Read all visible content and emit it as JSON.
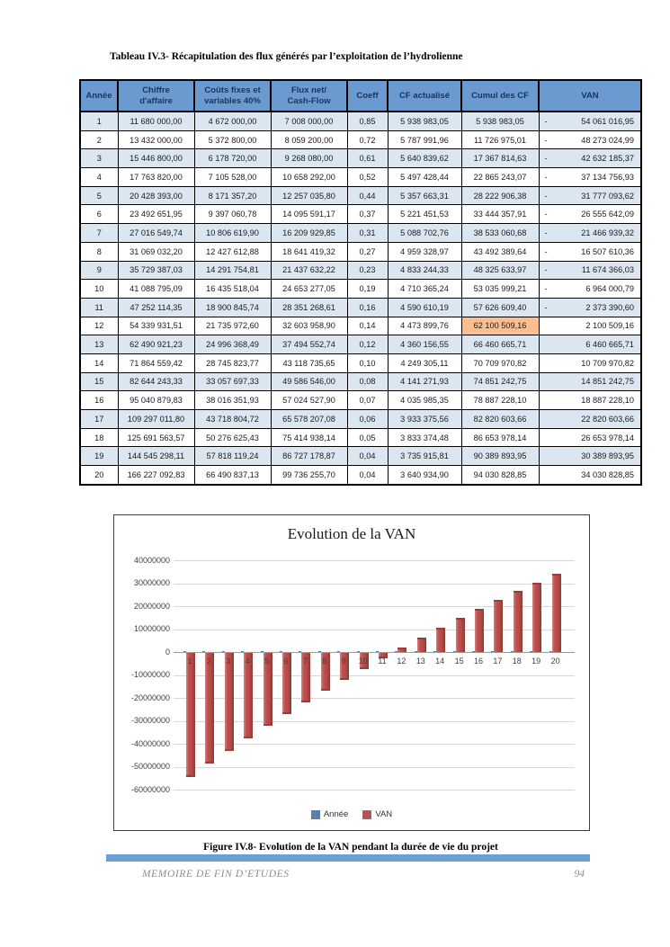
{
  "page": {
    "table_title": "Tableau IV.3- Récapitulation des flux générés par l’exploitation de l’hydrolienne",
    "figure_caption": "Figure IV.8- Evolution de la VAN pendant la durée de vie du projet",
    "footer_left": "MEMOIRE DE FIN D’ETUDES",
    "footer_page": "94",
    "accent_bar_color": "#6aa0d6"
  },
  "table": {
    "header_bg": "#6b9ad1",
    "shade_row_bg": "#dce6f1",
    "highlight_bg": "#fabf8f",
    "headers": [
      "Année",
      "Chiffre\nd'affaire",
      "Coûts fixes et\nvariables 40%",
      "Flux net/\nCash-Flow",
      "Coeff",
      "CF actualisé",
      "Cumul des CF",
      "VAN"
    ],
    "highlight_cumul_rows": [
      11,
      12
    ],
    "rows": [
      [
        "1",
        "11 680 000,00",
        "4 672 000,00",
        "7 008 000,00",
        "0,85",
        "5 938 983,05",
        "5 938 983,05",
        "-54 061 016,95"
      ],
      [
        "2",
        "13 432 000,00",
        "5 372 800,00",
        "8 059 200,00",
        "0,72",
        "5 787 991,96",
        "11 726 975,01",
        "-48 273 024,99"
      ],
      [
        "3",
        "15 446 800,00",
        "6 178 720,00",
        "9 268 080,00",
        "0,61",
        "5 640 839,62",
        "17 367 814,63",
        "-42 632 185,37"
      ],
      [
        "4",
        "17 763 820,00",
        "7 105 528,00",
        "10 658 292,00",
        "0,52",
        "5 497 428,44",
        "22 865 243,07",
        "-37 134 756,93"
      ],
      [
        "5",
        "20 428 393,00",
        "8 171 357,20",
        "12 257 035,80",
        "0,44",
        "5 357 663,31",
        "28 222 906,38",
        "-31 777 093,62"
      ],
      [
        "6",
        "23 492 651,95",
        "9 397 060,78",
        "14 095 591,17",
        "0,37",
        "5 221 451,53",
        "33 444 357,91",
        "-26 555 642,09"
      ],
      [
        "7",
        "27 016 549,74",
        "10 806 619,90",
        "16 209 929,85",
        "0,31",
        "5 088 702,76",
        "38 533 060,68",
        "-21 466 939,32"
      ],
      [
        "8",
        "31 069 032,20",
        "12 427 612,88",
        "18 641 419,32",
        "0,27",
        "4 959 328,97",
        "43 492 389,64",
        "-16 507 610,36"
      ],
      [
        "9",
        "35 729 387,03",
        "14 291 754,81",
        "21 437 632,22",
        "0,23",
        "4 833 244,33",
        "48 325 633,97",
        "-11 674 366,03"
      ],
      [
        "10",
        "41 088 795,09",
        "16 435 518,04",
        "24 653 277,05",
        "0,19",
        "4 710 365,24",
        "53 035 999,21",
        "-6 964 000,79"
      ],
      [
        "11",
        "47 252 114,35",
        "18 900 845,74",
        "28 351 268,61",
        "0,16",
        "4 590 610,19",
        "57 626 609,40",
        "-2 373 390,60"
      ],
      [
        "12",
        "54 339 931,51",
        "21 735 972,60",
        "32 603 958,90",
        "0,14",
        "4 473 899,76",
        "62 100 509,16",
        "2 100 509,16"
      ],
      [
        "13",
        "62 490 921,23",
        "24 996 368,49",
        "37 494 552,74",
        "0,12",
        "4 360 156,55",
        "66 460 665,71",
        "6 460 665,71"
      ],
      [
        "14",
        "71 864 559,42",
        "28 745 823,77",
        "43 118 735,65",
        "0,10",
        "4 249 305,11",
        "70 709 970,82",
        "10 709 970,82"
      ],
      [
        "15",
        "82 644 243,33",
        "33 057 697,33",
        "49 586 546,00",
        "0,08",
        "4 141 271,93",
        "74 851 242,75",
        "14 851 242,75"
      ],
      [
        "16",
        "95 040 879,83",
        "38 016 351,93",
        "57 024 527,90",
        "0,07",
        "4 035 985,35",
        "78 887 228,10",
        "18 887 228,10"
      ],
      [
        "17",
        "109 297 011,80",
        "43 718 804,72",
        "65 578 207,08",
        "0,06",
        "3 933 375,56",
        "82 820 603,66",
        "22 820 603,66"
      ],
      [
        "18",
        "125 691 563,57",
        "50 276 625,43",
        "75 414 938,14",
        "0,05",
        "3 833 374,48",
        "86 653 978,14",
        "26 653 978,14"
      ],
      [
        "19",
        "144 545 298,11",
        "57 818 119,24",
        "86 727 178,87",
        "0,04",
        "3 735 915,81",
        "90 389 893,95",
        "30 389 893,95"
      ],
      [
        "20",
        "166 227 092,83",
        "66 490 837,13",
        "99 736 255,70",
        "0,04",
        "3 640 934,90",
        "94 030 828,85",
        "34 030 828,85"
      ]
    ]
  },
  "chart_data": {
    "type": "bar",
    "title": "Evolution de la VAN",
    "categories": [
      "1",
      "2",
      "3",
      "4",
      "5",
      "6",
      "7",
      "8",
      "9",
      "10",
      "11",
      "12",
      "13",
      "14",
      "15",
      "16",
      "17",
      "18",
      "19",
      "20"
    ],
    "series": [
      {
        "name": "Année",
        "color": "#4f81bd",
        "values": [
          1,
          2,
          3,
          4,
          5,
          6,
          7,
          8,
          9,
          10,
          11,
          12,
          13,
          14,
          15,
          16,
          17,
          18,
          19,
          20
        ]
      },
      {
        "name": "VAN",
        "color": "#c0504d",
        "values": [
          -54061016.95,
          -48273024.99,
          -42632185.37,
          -37134756.93,
          -31777093.62,
          -26555642.09,
          -21466939.32,
          -16507610.36,
          -11674366.03,
          -6964000.79,
          -2373390.6,
          2100509.16,
          6460665.71,
          10709970.82,
          14851242.75,
          18887228.1,
          22820603.66,
          26653978.14,
          30389893.95,
          34030828.85
        ]
      }
    ],
    "xlabel": "",
    "ylabel": "",
    "ylim": [
      -60000000,
      40000000
    ],
    "ytick_step": 10000000,
    "ytick_labels": [
      "40000000",
      "30000000",
      "20000000",
      "10000000",
      "0",
      "-10000000",
      "-20000000",
      "-30000000",
      "-40000000",
      "-50000000",
      "-60000000"
    ],
    "grid": true,
    "legend_position": "bottom"
  }
}
